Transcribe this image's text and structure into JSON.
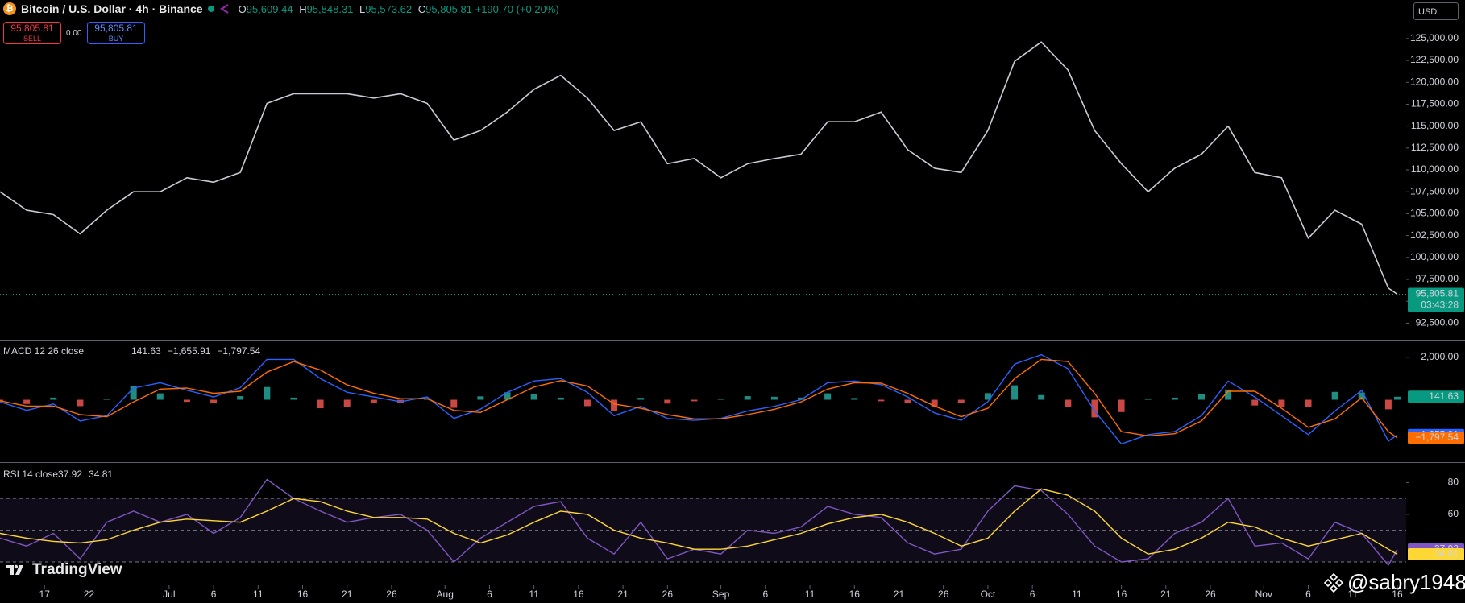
{
  "header": {
    "symbol": "Bitcoin / U.S. Dollar · 4h · Binance",
    "ohlc": [
      {
        "key": "O",
        "value": "95,609.44"
      },
      {
        "key": "H",
        "value": "95,848.31"
      },
      {
        "key": "L",
        "value": "95,573.62"
      },
      {
        "key": "C",
        "value": "95,805.81"
      }
    ],
    "change": "+190.70 (+0.20%)",
    "sell": {
      "price": "95,805.81",
      "label": "SELL"
    },
    "spread": "0.00",
    "buy": {
      "price": "95,805.81",
      "label": "BUY"
    },
    "currency": "USD"
  },
  "branding": "TradingView",
  "watermark": "@sabry1948",
  "chart_data": [
    {
      "type": "line",
      "x": [
        "Jun 12",
        "Jun 15",
        "Jun 18",
        "Jun 21",
        "Jun 24",
        "Jun 27",
        "Jun 30",
        "Jul 3",
        "Jul 6",
        "Jul 9",
        "Jul 12",
        "Jul 15",
        "Jul 18",
        "Jul 21",
        "Jul 24",
        "Jul 27",
        "Jul 30",
        "Aug 2",
        "Aug 5",
        "Aug 8",
        "Aug 11",
        "Aug 14",
        "Aug 17",
        "Aug 20",
        "Aug 23",
        "Aug 26",
        "Aug 29",
        "Sep 1",
        "Sep 4",
        "Sep 7",
        "Sep 10",
        "Sep 13",
        "Sep 16",
        "Sep 19",
        "Sep 22",
        "Sep 25",
        "Sep 28",
        "Oct 1",
        "Oct 4",
        "Oct 7",
        "Oct 10",
        "Oct 13",
        "Oct 16",
        "Oct 19",
        "Oct 22",
        "Oct 25",
        "Oct 28",
        "Oct 31",
        "Nov 3",
        "Nov 6",
        "Nov 9",
        "Nov 12",
        "Nov 15",
        "Nov 16"
      ],
      "series": [
        {
          "color": "#c9ccd4",
          "values": [
            107500,
            105400,
            104900,
            102700,
            105400,
            107500,
            107500,
            109100,
            108600,
            109700,
            117600,
            118700,
            118700,
            118700,
            118200,
            118700,
            117600,
            113400,
            114500,
            116600,
            119200,
            120800,
            118200,
            114500,
            115500,
            110700,
            111300,
            109100,
            110700,
            111300,
            111800,
            115500,
            115500,
            116600,
            112300,
            110200,
            109700,
            114500,
            122400,
            124600,
            121400,
            114500,
            110700,
            107500,
            110200,
            111800,
            115000,
            109700,
            109100,
            102200,
            105400,
            103800,
            96500,
            95805.81
          ],
          "last_value_label": "95,805.81",
          "badge_color": "#089981"
        }
      ],
      "countdown": "03:43:28",
      "ylim": [
        90700,
        129400
      ],
      "yticks": [
        {
          "value": 92500,
          "label": "92,500.00"
        },
        {
          "value": 95000,
          "label": "95,000.00"
        },
        {
          "value": 97500,
          "label": "97,500.00"
        },
        {
          "value": 100000,
          "label": "100,000.00"
        },
        {
          "value": 102500,
          "label": "102,500.00"
        },
        {
          "value": 105000,
          "label": "105,000.00"
        },
        {
          "value": 107500,
          "label": "107,500.00"
        },
        {
          "value": 110000,
          "label": "110,000.00"
        },
        {
          "value": 112500,
          "label": "112,500.00"
        },
        {
          "value": 115000,
          "label": "115,000.00"
        },
        {
          "value": 117500,
          "label": "117,500.00"
        },
        {
          "value": 120000,
          "label": "120,000.00"
        },
        {
          "value": 122500,
          "label": "122,500.00"
        },
        {
          "value": 125000,
          "label": "125,000.00"
        }
      ]
    },
    {
      "type": "line",
      "title": "MACD 12 26 close",
      "x": [
        "Jun 12",
        "Jun 15",
        "Jun 18",
        "Jun 21",
        "Jun 24",
        "Jun 27",
        "Jun 30",
        "Jul 3",
        "Jul 6",
        "Jul 9",
        "Jul 12",
        "Jul 15",
        "Jul 18",
        "Jul 21",
        "Jul 24",
        "Jul 27",
        "Jul 30",
        "Aug 2",
        "Aug 5",
        "Aug 8",
        "Aug 11",
        "Aug 14",
        "Aug 17",
        "Aug 20",
        "Aug 23",
        "Aug 26",
        "Aug 29",
        "Sep 1",
        "Sep 4",
        "Sep 7",
        "Sep 10",
        "Sep 13",
        "Sep 16",
        "Sep 19",
        "Sep 22",
        "Sep 25",
        "Sep 28",
        "Oct 1",
        "Oct 4",
        "Oct 7",
        "Oct 10",
        "Oct 13",
        "Oct 16",
        "Oct 19",
        "Oct 22",
        "Oct 25",
        "Oct 28",
        "Oct 31",
        "Nov 3",
        "Nov 6",
        "Nov 9",
        "Nov 12",
        "Nov 15",
        "Nov 16"
      ],
      "series": [
        {
          "type": "bar",
          "color": "#26a69a",
          "negative_color": "#ef5350",
          "values": [
            -50,
            -200,
            100,
            -300,
            50,
            650,
            300,
            -100,
            -170,
            170,
            600,
            100,
            -400,
            -350,
            -170,
            -140,
            80,
            -380,
            160,
            350,
            280,
            100,
            -300,
            -550,
            90,
            -180,
            -70,
            20,
            170,
            140,
            100,
            300,
            80,
            -70,
            -170,
            -320,
            -170,
            310,
            680,
            220,
            -340,
            -830,
            -580,
            60,
            100,
            250,
            480,
            -270,
            -350,
            -340,
            370,
            340,
            -450,
            141.63
          ],
          "last_value_label": "141.63",
          "badge_color": "#089981"
        },
        {
          "color": "#2962ff",
          "values": [
            -100,
            -500,
            -200,
            -1000,
            -750,
            550,
            800,
            450,
            130,
            570,
            1900,
            1900,
            1000,
            350,
            130,
            -90,
            130,
            -880,
            -440,
            350,
            880,
            1000,
            350,
            -750,
            -310,
            -880,
            -970,
            -880,
            -530,
            -310,
            0,
            800,
            880,
            710,
            130,
            -620,
            -970,
            -90,
            1680,
            2120,
            1460,
            -530,
            -2080,
            -1640,
            -1500,
            -750,
            880,
            130,
            -750,
            -1640,
            -530,
            440,
            -1950,
            -1655.91
          ],
          "last_value_label": "−1,655.91",
          "badge_color": "#2962ff"
        },
        {
          "color": "#ff6d00",
          "values": [
            -50,
            -300,
            -300,
            -700,
            -800,
            -100,
            500,
            550,
            300,
            400,
            1300,
            1800,
            1400,
            700,
            300,
            50,
            50,
            -500,
            -600,
            0,
            600,
            900,
            650,
            -200,
            -400,
            -700,
            -900,
            -900,
            -700,
            -450,
            -100,
            500,
            800,
            780,
            300,
            -300,
            -800,
            -400,
            1000,
            1900,
            1800,
            300,
            -1500,
            -1700,
            -1600,
            -1000,
            400,
            400,
            -400,
            -1300,
            -900,
            100,
            -1500,
            -1797.54
          ],
          "last_value_label": "−1,797.54",
          "badge_color": "#ff6d00"
        }
      ],
      "ylim": [
        -2900,
        2750
      ],
      "yticks": [
        {
          "value": 2000,
          "label": "2,000.00"
        }
      ]
    },
    {
      "type": "line",
      "title": "RSI 14 close",
      "x": [
        "Jun 12",
        "Jun 15",
        "Jun 18",
        "Jun 21",
        "Jun 24",
        "Jun 27",
        "Jun 30",
        "Jul 3",
        "Jul 6",
        "Jul 9",
        "Jul 12",
        "Jul 15",
        "Jul 18",
        "Jul 21",
        "Jul 24",
        "Jul 27",
        "Jul 30",
        "Aug 2",
        "Aug 5",
        "Aug 8",
        "Aug 11",
        "Aug 14",
        "Aug 17",
        "Aug 20",
        "Aug 23",
        "Aug 26",
        "Aug 29",
        "Sep 1",
        "Sep 4",
        "Sep 7",
        "Sep 10",
        "Sep 13",
        "Sep 16",
        "Sep 19",
        "Sep 22",
        "Sep 25",
        "Sep 28",
        "Oct 1",
        "Oct 4",
        "Oct 7",
        "Oct 10",
        "Oct 13",
        "Oct 16",
        "Oct 19",
        "Oct 22",
        "Oct 25",
        "Oct 28",
        "Oct 31",
        "Nov 3",
        "Nov 6",
        "Nov 9",
        "Nov 12",
        "Nov 15",
        "Nov 16"
      ],
      "series": [
        {
          "color": "#7e57c2",
          "values": [
            45,
            40,
            48,
            32,
            55,
            62,
            55,
            60,
            48,
            58,
            82,
            70,
            62,
            55,
            58,
            60,
            50,
            30,
            45,
            55,
            65,
            68,
            45,
            35,
            55,
            32,
            38,
            35,
            50,
            48,
            52,
            65,
            60,
            58,
            42,
            35,
            38,
            62,
            78,
            75,
            60,
            40,
            30,
            32,
            48,
            55,
            70,
            40,
            42,
            32,
            55,
            48,
            28,
            37.92
          ],
          "last_value_label": "37.92",
          "badge_color": "#7e57c2"
        },
        {
          "color": "#fdd835",
          "values": [
            48,
            45,
            43,
            42,
            44,
            50,
            55,
            57,
            56,
            55,
            62,
            70,
            68,
            62,
            58,
            58,
            57,
            48,
            42,
            47,
            55,
            62,
            60,
            50,
            45,
            42,
            38,
            38,
            40,
            44,
            48,
            54,
            58,
            60,
            55,
            48,
            40,
            45,
            62,
            76,
            72,
            62,
            45,
            35,
            38,
            45,
            55,
            52,
            45,
            40,
            44,
            48,
            38,
            34.81
          ],
          "last_value_label": "34.81",
          "badge_color": "#fdd835"
        }
      ],
      "bands": [
        70,
        50,
        30
      ],
      "ylim": [
        15.3,
        92.4
      ],
      "yticks": [
        60,
        80
      ],
      "xlim": [
        "Jun 12",
        "Nov 17"
      ],
      "xticks": [
        {
          "value": "Jun 17",
          "label": "17"
        },
        {
          "value": "Jun 22",
          "label": "22"
        },
        {
          "value": "Jul 1",
          "label": "Jul"
        },
        {
          "value": "Jul 6",
          "label": "6"
        },
        {
          "value": "Jul 11",
          "label": "11"
        },
        {
          "value": "Jul 16",
          "label": "16"
        },
        {
          "value": "Jul 21",
          "label": "21"
        },
        {
          "value": "Jul 26",
          "label": "26"
        },
        {
          "value": "Aug 1",
          "label": "Aug"
        },
        {
          "value": "Aug 6",
          "label": "6"
        },
        {
          "value": "Aug 11",
          "label": "11"
        },
        {
          "value": "Aug 16",
          "label": "16"
        },
        {
          "value": "Aug 21",
          "label": "21"
        },
        {
          "value": "Aug 26",
          "label": "26"
        },
        {
          "value": "Sep 1",
          "label": "Sep"
        },
        {
          "value": "Sep 6",
          "label": "6"
        },
        {
          "value": "Sep 11",
          "label": "11"
        },
        {
          "value": "Sep 16",
          "label": "16"
        },
        {
          "value": "Sep 21",
          "label": "21"
        },
        {
          "value": "Sep 26",
          "label": "26"
        },
        {
          "value": "Oct 1",
          "label": "Oct"
        },
        {
          "value": "Oct 6",
          "label": "6"
        },
        {
          "value": "Oct 11",
          "label": "11"
        },
        {
          "value": "Oct 16",
          "label": "16"
        },
        {
          "value": "Oct 21",
          "label": "21"
        },
        {
          "value": "Oct 26",
          "label": "26"
        },
        {
          "value": "Nov 1",
          "label": "Nov"
        },
        {
          "value": "Nov 6",
          "label": "6"
        },
        {
          "value": "Nov 11",
          "label": "11"
        },
        {
          "value": "Nov 16",
          "label": "16"
        }
      ]
    }
  ]
}
